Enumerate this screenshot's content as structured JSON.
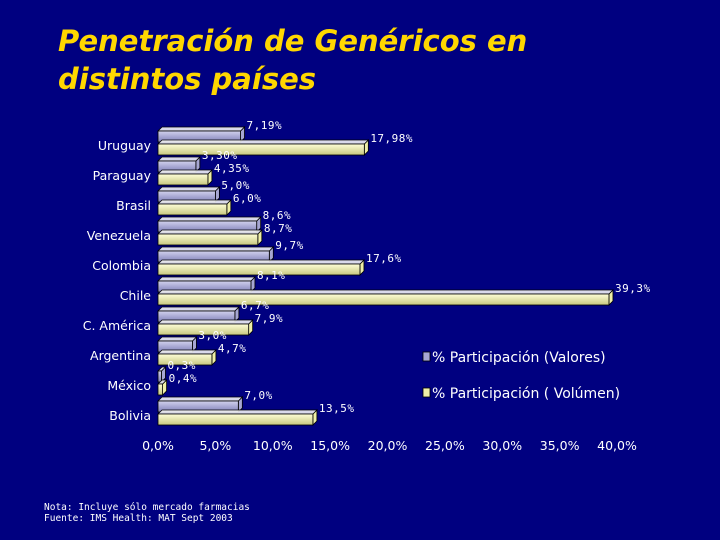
{
  "title_lines": [
    "Penetración de Genéricos en",
    "distintos países"
  ],
  "colors": {
    "background": "#000080",
    "title": "#FFD700",
    "valores_fill": "#A6A6D2",
    "volumen_fill": "#EEEEA8",
    "bar_edge": "#000000"
  },
  "chart_data": {
    "type": "bar",
    "orientation": "horizontal",
    "title": "Penetración de Genéricos en distintos países",
    "categories": [
      "Uruguay",
      "Paraguay",
      "Brasil",
      "Venezuela",
      "Colombia",
      "Chile",
      "C. América",
      "Argentina",
      "México",
      "Bolivia"
    ],
    "series": [
      {
        "name": "% Participación (Valores)",
        "values": [
          7.19,
          3.3,
          5.0,
          8.6,
          9.7,
          8.1,
          6.7,
          3.0,
          0.3,
          7.0
        ],
        "labels": [
          "7,19%",
          "3,30%",
          "5,0%",
          "8,6%",
          "9,7%",
          "8,1%",
          "6,7%",
          "3,0%",
          "0,3%",
          "7,0%"
        ]
      },
      {
        "name": "% Participación ( Volúmen)",
        "values": [
          17.98,
          4.35,
          6.0,
          8.7,
          17.6,
          39.3,
          7.9,
          4.7,
          0.4,
          13.5
        ],
        "labels": [
          "17,98%",
          "4,35%",
          "6,0%",
          "8,7%",
          "17,6%",
          "39,3%",
          "7,9%",
          "4,7%",
          "0,4%",
          "13,5%"
        ]
      }
    ],
    "xlim": [
      0,
      40
    ],
    "xticks": [
      "0,0%",
      "5,0%",
      "10,0%",
      "15,0%",
      "20,0%",
      "25,0%",
      "30,0%",
      "35,0%",
      "40,0%"
    ],
    "legend_position": "right",
    "grid": false
  },
  "notes": [
    "Nota: Incluye sólo mercado farmacias",
    "Fuente: IMS Health: MAT Sept 2003"
  ]
}
